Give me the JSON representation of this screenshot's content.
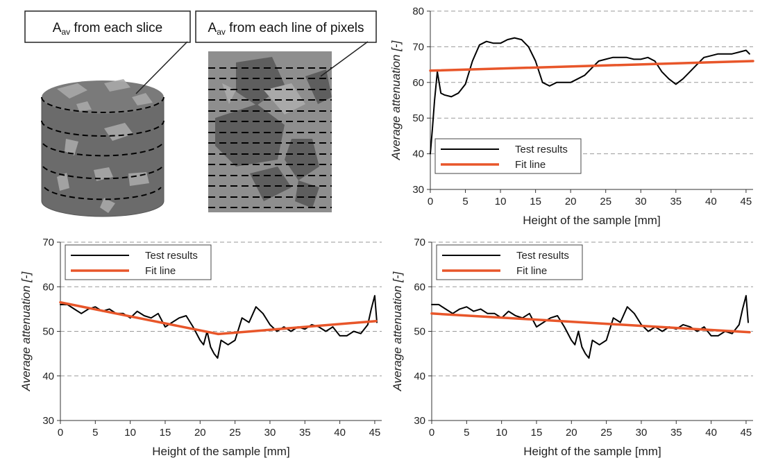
{
  "schematic": {
    "callout_slice": {
      "main": "A",
      "sub": "av",
      "rest": " from each slice"
    },
    "callout_pixels": {
      "main": "A",
      "sub": "av",
      "rest": " from each line of pixels"
    }
  },
  "chart_data": [
    {
      "type": "line",
      "xlabel": "Height of the sample [mm]",
      "ylabel": "Average attenuation [-]",
      "xlim": [
        0,
        46
      ],
      "ylim": [
        30,
        80
      ],
      "xticks": [
        0,
        5,
        10,
        15,
        20,
        25,
        30,
        35,
        40,
        45
      ],
      "yticks": [
        30,
        40,
        50,
        60,
        70,
        80
      ],
      "grid": "horizontal dashed",
      "legend_position": "lower-left",
      "series": [
        {
          "name": "Test results",
          "color": "#000000",
          "x": [
            0,
            0.3,
            0.6,
            1,
            1.5,
            2,
            3,
            4,
            5,
            6,
            7,
            8,
            9,
            10,
            11,
            12,
            13,
            14,
            15,
            16,
            17,
            18,
            19,
            20,
            21,
            22,
            23,
            24,
            25,
            26,
            27,
            28,
            29,
            30,
            31,
            32,
            33,
            34,
            35,
            36,
            37,
            38,
            39,
            40,
            41,
            42,
            43,
            44,
            45,
            45.5
          ],
          "y": [
            40,
            47,
            55,
            63,
            57,
            56.5,
            56,
            57,
            59.5,
            66,
            70.5,
            71.5,
            71,
            71,
            72,
            72.5,
            72,
            70,
            66,
            60,
            59,
            60,
            60,
            60,
            61,
            62,
            64,
            66,
            66.5,
            67,
            67,
            67,
            66.5,
            66.5,
            67,
            66,
            63,
            61,
            59.5,
            61,
            63,
            65,
            67,
            67.5,
            68,
            68,
            68,
            68.5,
            69,
            68
          ]
        },
        {
          "name": "Fit line",
          "color": "#E8562A",
          "x": [
            0,
            46
          ],
          "y": [
            63.3,
            66
          ]
        }
      ]
    },
    {
      "type": "line",
      "xlabel": "Height of the sample [mm]",
      "ylabel": "Average attenuation [-]",
      "xlim": [
        0,
        46
      ],
      "ylim": [
        30,
        70
      ],
      "xticks": [
        0,
        5,
        10,
        15,
        20,
        25,
        30,
        35,
        40,
        45
      ],
      "yticks": [
        30,
        40,
        50,
        60,
        70
      ],
      "grid": "horizontal dashed",
      "legend_position": "top-left",
      "series": [
        {
          "name": "Test results",
          "color": "#000000",
          "x": [
            0,
            1,
            2,
            3,
            4,
            5,
            6,
            7,
            8,
            9,
            10,
            11,
            12,
            13,
            14,
            15,
            16,
            17,
            18,
            19,
            20,
            20.5,
            21,
            21.5,
            22,
            22.5,
            23,
            24,
            25,
            26,
            27,
            28,
            29,
            30,
            31,
            32,
            33,
            34,
            35,
            36,
            37,
            38,
            39,
            40,
            41,
            42,
            43,
            44,
            44.5,
            45,
            45.3
          ],
          "y": [
            56,
            56,
            55,
            54,
            55,
            55.5,
            54.5,
            55,
            54,
            54,
            53,
            54.5,
            53.5,
            53,
            54,
            51,
            52,
            53,
            53.5,
            51,
            48,
            47,
            50,
            46.5,
            45,
            44,
            48,
            47,
            48,
            53,
            52,
            55.5,
            54,
            51.5,
            50,
            51,
            50,
            51,
            50.5,
            51.5,
            51,
            50,
            51,
            49,
            49,
            50,
            49.5,
            51.5,
            55,
            58,
            52
          ]
        },
        {
          "name": "Fit line",
          "color": "#E8562A",
          "x": [
            0,
            22.6,
            45.2
          ],
          "y": [
            56.5,
            49.4,
            52.3
          ]
        }
      ]
    },
    {
      "type": "line",
      "xlabel": "Height of the sample [mm]",
      "ylabel": "Average attenuation [-]",
      "xlim": [
        0,
        46
      ],
      "ylim": [
        30,
        70
      ],
      "xticks": [
        0,
        5,
        10,
        15,
        20,
        25,
        30,
        35,
        40,
        45
      ],
      "yticks": [
        30,
        40,
        50,
        60,
        70
      ],
      "grid": "horizontal dashed",
      "legend_position": "top-left",
      "series": [
        {
          "name": "Test results",
          "color": "#000000",
          "x": [
            0,
            1,
            2,
            3,
            4,
            5,
            6,
            7,
            8,
            9,
            10,
            11,
            12,
            13,
            14,
            15,
            16,
            17,
            18,
            19,
            20,
            20.5,
            21,
            21.5,
            22,
            22.5,
            23,
            24,
            25,
            26,
            27,
            28,
            29,
            30,
            31,
            32,
            33,
            34,
            35,
            36,
            37,
            38,
            39,
            40,
            41,
            42,
            43,
            44,
            44.5,
            45,
            45.3
          ],
          "y": [
            56,
            56,
            55,
            54,
            55,
            55.5,
            54.5,
            55,
            54,
            54,
            53,
            54.5,
            53.5,
            53,
            54,
            51,
            52,
            53,
            53.5,
            51,
            48,
            47,
            50,
            46.5,
            45,
            44,
            48,
            47,
            48,
            53,
            52,
            55.5,
            54,
            51.5,
            50,
            51,
            50,
            51,
            50.5,
            51.5,
            51,
            50,
            51,
            49,
            49,
            50,
            49.5,
            51.5,
            55,
            58,
            52
          ]
        },
        {
          "name": "Fit line",
          "color": "#E8562A",
          "x": [
            0,
            45.5
          ],
          "y": [
            54,
            49.8
          ]
        }
      ]
    }
  ]
}
